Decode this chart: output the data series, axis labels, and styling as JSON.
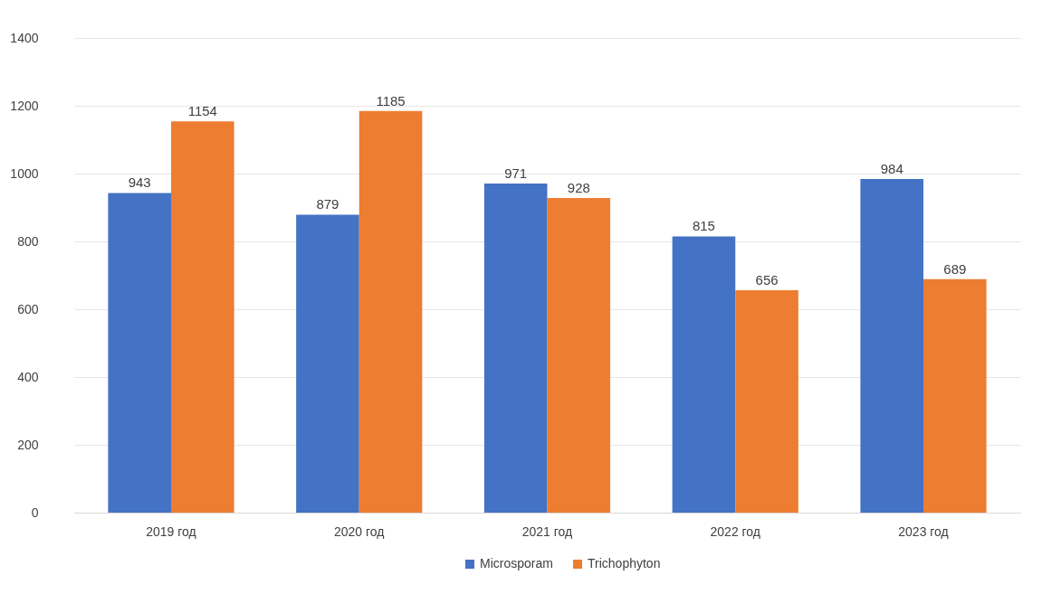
{
  "chart_data": {
    "type": "bar",
    "categories": [
      "2019 год",
      "2020 год",
      "2021 год",
      "2022 год",
      "2023 год"
    ],
    "series": [
      {
        "name": "Microsporam",
        "color": "#4472c4",
        "values": [
          943,
          879,
          971,
          815,
          984
        ]
      },
      {
        "name": "Trichophyton",
        "color": "#ed7d31",
        "values": [
          1154,
          1185,
          928,
          656,
          689
        ]
      }
    ],
    "ylim": [
      0,
      1400
    ],
    "yticks": [
      0,
      200,
      400,
      600,
      800,
      1000,
      1200,
      1400
    ],
    "grid": "y",
    "legend": "bottom",
    "data_labels": true
  }
}
